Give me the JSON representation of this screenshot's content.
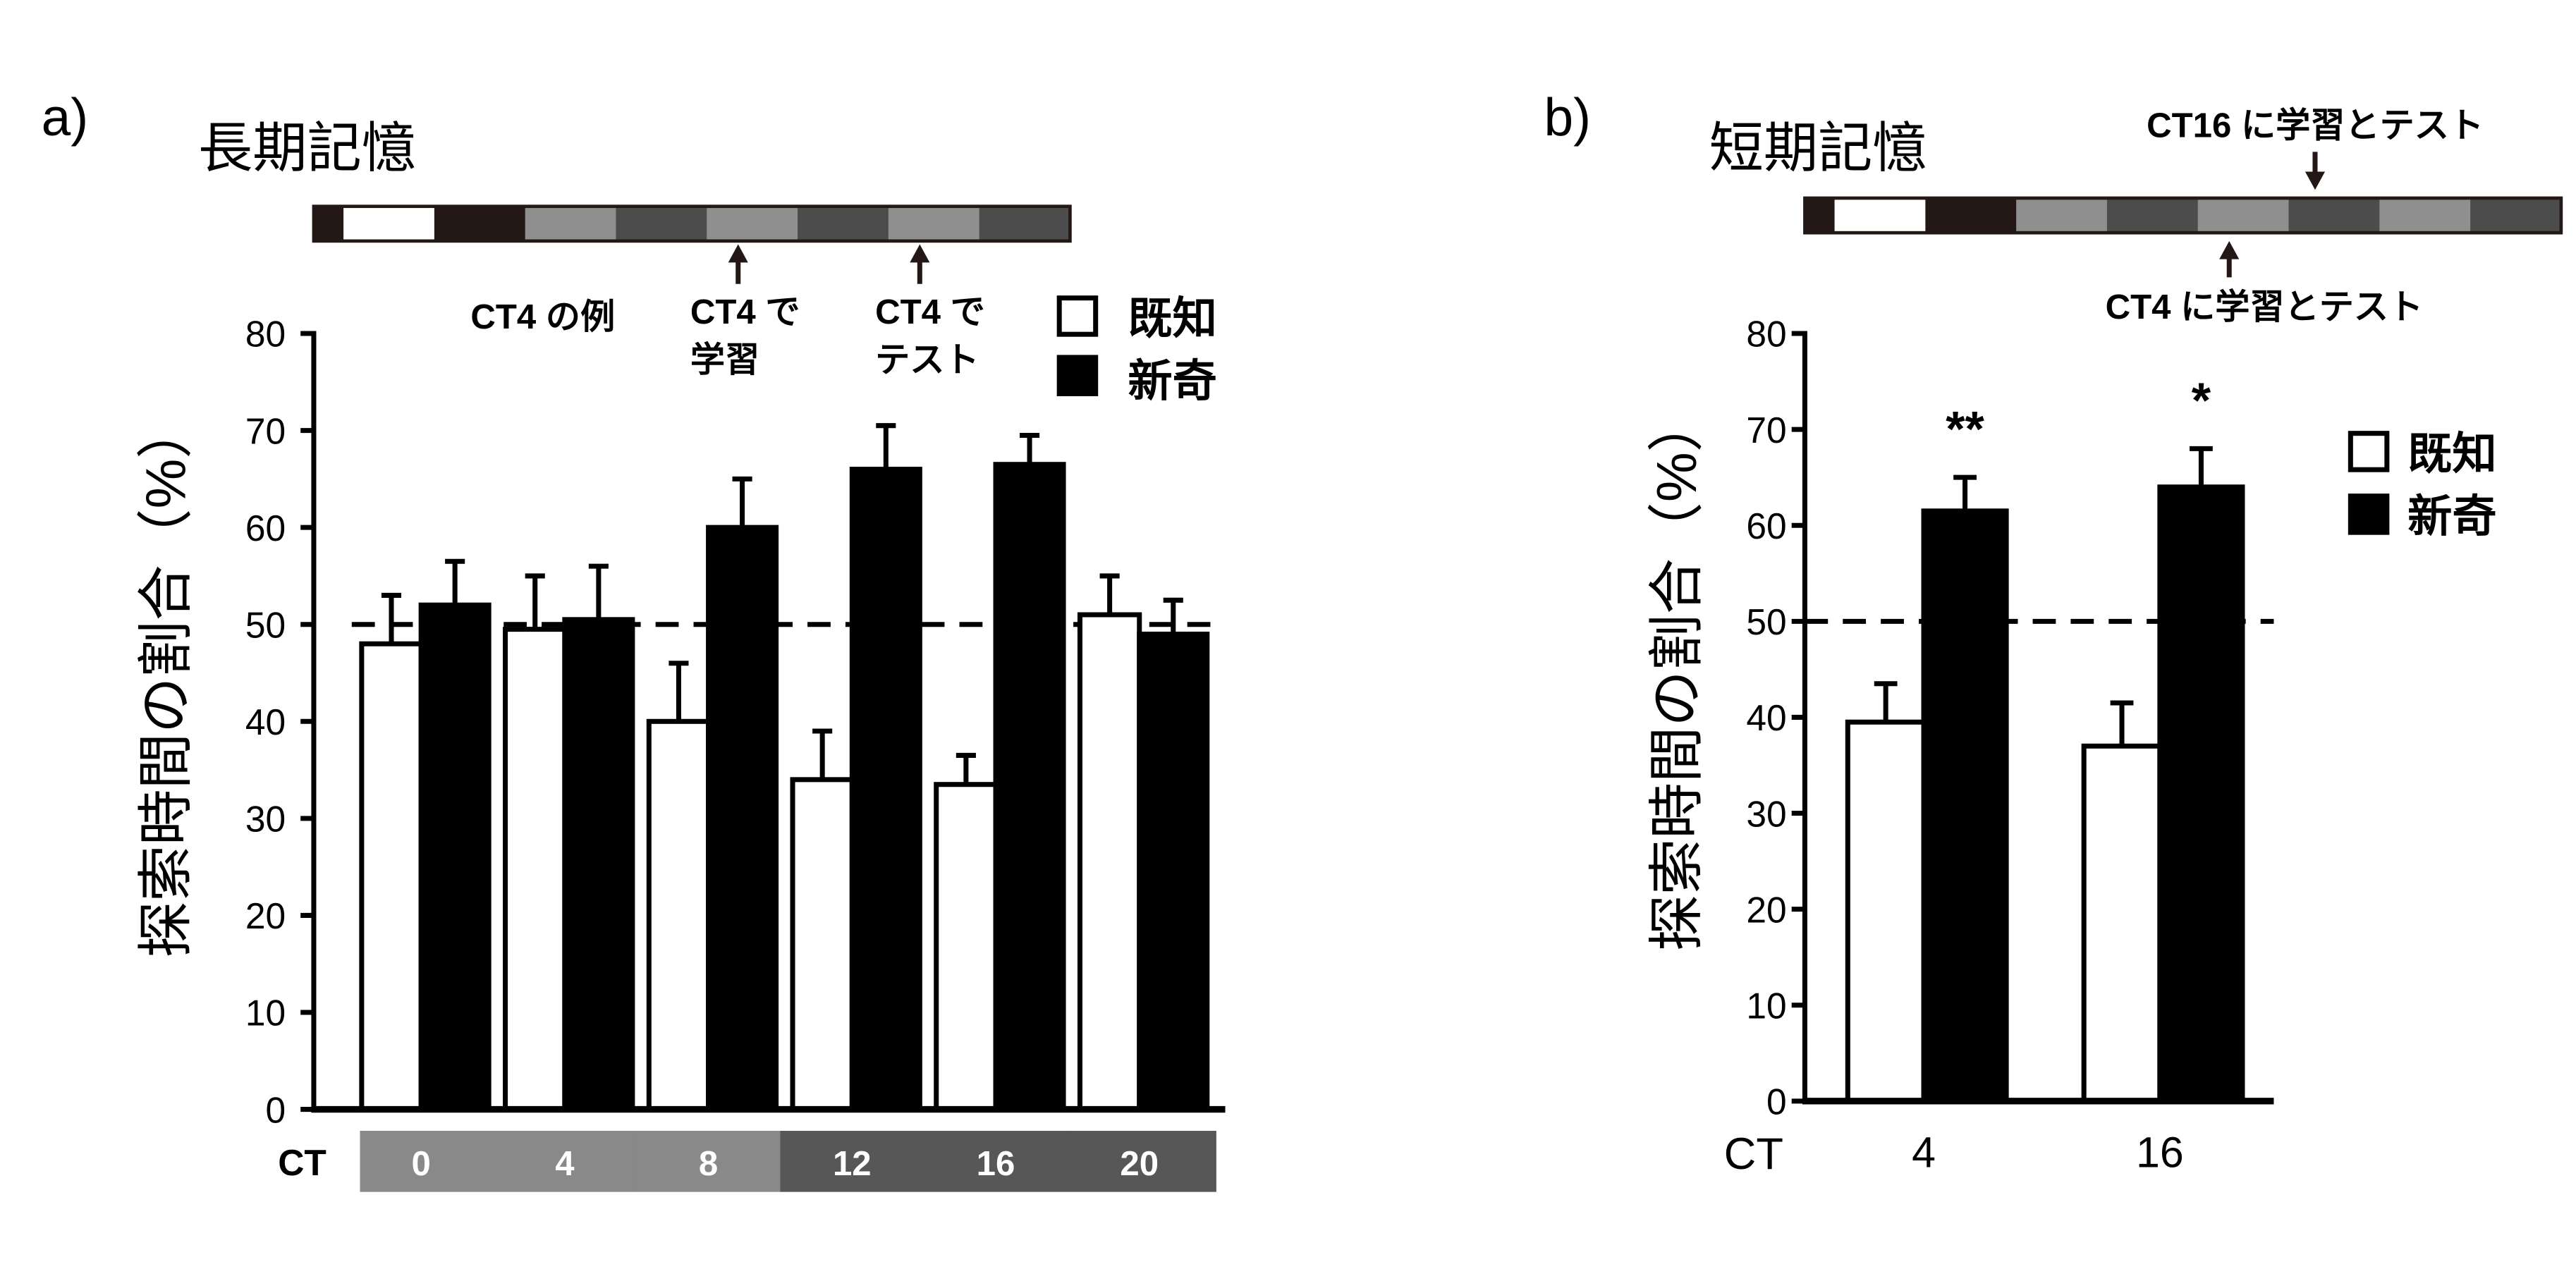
{
  "colors": {
    "background": "#ffffff",
    "schedule": [
      "#231815",
      "#ffffff",
      "#231815",
      "#8f8f8f",
      "#4c4c4c",
      "#8f8f8f",
      "#4c4c4c",
      "#8f8f8f",
      "#4c4c4c"
    ]
  },
  "chart_data": [
    {
      "panel_label": "a)",
      "type": "bar",
      "title": "長期記憶",
      "xlabel": "CT",
      "ylabel": "探索時間の割合（%）",
      "categories": [
        "0",
        "4",
        "8",
        "12",
        "16",
        "20"
      ],
      "category_band_colors": [
        "#898989",
        "#898989",
        "#898989",
        "#575757",
        "#575757",
        "#575757"
      ],
      "ylim": [
        0,
        80
      ],
      "yticks": [
        0,
        10,
        20,
        30,
        40,
        50,
        60,
        70,
        80
      ],
      "reference_line": 50,
      "grid": false,
      "legend_position": "top-right",
      "series": [
        {
          "name": "既知",
          "color": "#ffffff",
          "values": [
            48,
            49.5,
            40,
            34,
            33.5,
            51
          ],
          "errors": [
            5,
            5.5,
            6,
            5,
            3,
            4
          ]
        },
        {
          "name": "新奇",
          "color": "#000000",
          "values": [
            52,
            50.5,
            60,
            66,
            66.5,
            49
          ],
          "errors": [
            4.5,
            5.5,
            5,
            4.5,
            3,
            3.5
          ]
        }
      ],
      "annotations": {
        "example": "CT4 の例",
        "learning": [
          "CT4 で",
          "学習"
        ],
        "test": [
          "CT4 で",
          "テスト"
        ]
      }
    },
    {
      "panel_label": "b)",
      "type": "bar",
      "title": "短期記憶",
      "xlabel": "CT",
      "ylabel": "探索時間の割合（%）",
      "categories": [
        "4",
        "16"
      ],
      "ylim": [
        0,
        80
      ],
      "yticks": [
        0,
        10,
        20,
        30,
        40,
        50,
        60,
        70,
        80
      ],
      "reference_line": 50,
      "grid": false,
      "legend_position": "right",
      "series": [
        {
          "name": "既知",
          "color": "#ffffff",
          "values": [
            39.5,
            37
          ],
          "errors": [
            4,
            4.5
          ]
        },
        {
          "name": "新奇",
          "color": "#000000",
          "values": [
            61.5,
            64
          ],
          "errors": [
            3.5,
            4
          ]
        }
      ],
      "significance": [
        "**",
        "*"
      ],
      "annotations": {
        "ct16": "CT16 に学習とテスト",
        "ct4": "CT4 に学習とテスト"
      }
    }
  ]
}
